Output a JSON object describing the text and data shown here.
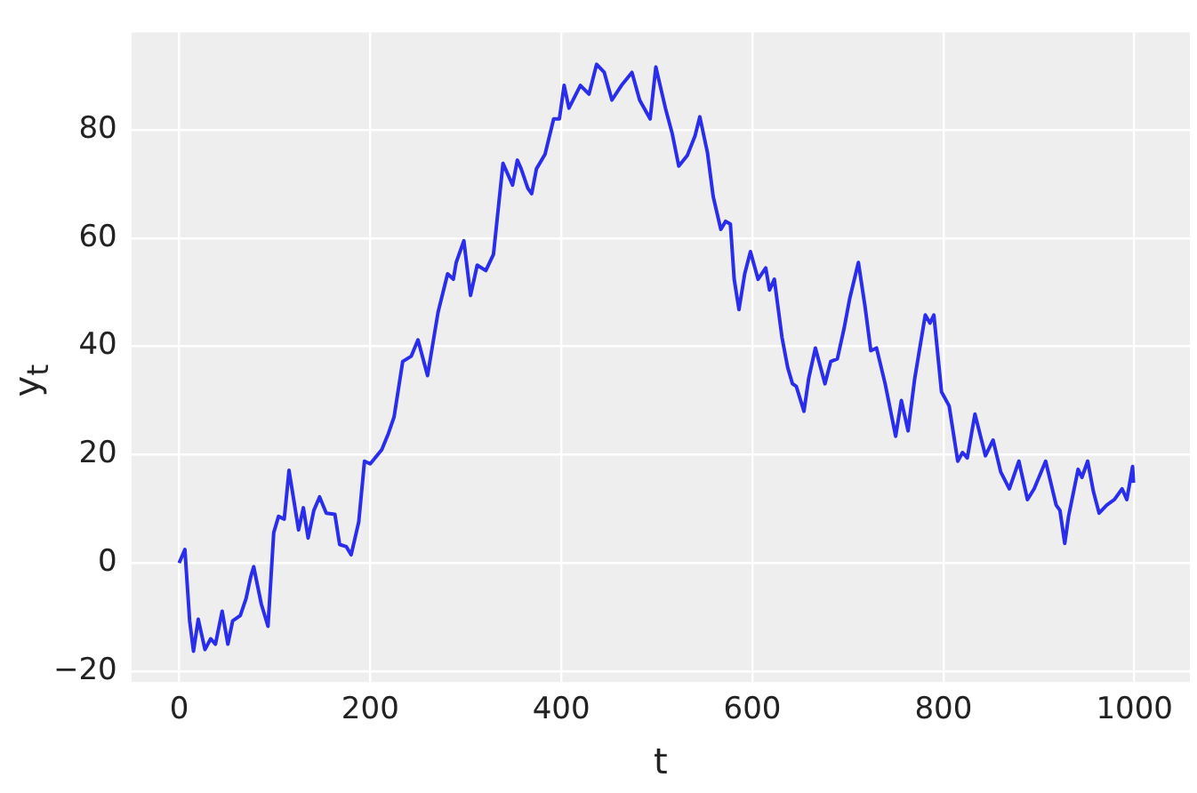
{
  "chart_data": {
    "type": "line",
    "xlabel": "t",
    "ylabel": "y$_{t}$",
    "xlim": [
      -50,
      1058
    ],
    "ylim": [
      -22,
      98
    ],
    "xticks": [
      0,
      200,
      400,
      600,
      800,
      1000
    ],
    "yticks": [
      {
        "value": -20,
        "label": "−20"
      },
      0,
      20,
      40,
      60,
      80
    ],
    "grid": true,
    "legend": false,
    "marker": "none",
    "line_style": "solid",
    "series": [
      {
        "color": "#2a2eec",
        "x": [
          0,
          6,
          11,
          15,
          20,
          27,
          33,
          38,
          45,
          51,
          56,
          64,
          70,
          75,
          78,
          86,
          93,
          99,
          104,
          110,
          115,
          125,
          130,
          135,
          141,
          147,
          154,
          163,
          168,
          175,
          180,
          188,
          194,
          200,
          212,
          219,
          225,
          234,
          243,
          250,
          260,
          271,
          281,
          287,
          290,
          298,
          305,
          312,
          321,
          329,
          339,
          349,
          354,
          358,
          365,
          369,
          374,
          383,
          392,
          398,
          403,
          408,
          420,
          429,
          437,
          445,
          453,
          463,
          474,
          482,
          493,
          499,
          509,
          516,
          523,
          532,
          540,
          545,
          553,
          559,
          567,
          572,
          577,
          581,
          586,
          592,
          598,
          606,
          614,
          618,
          623,
          631,
          637,
          642,
          646,
          654,
          659,
          666,
          676,
          682,
          689,
          696,
          702,
          711,
          718,
          724,
          730,
          739,
          750,
          756,
          763,
          770,
          781,
          786,
          790,
          798,
          806,
          815,
          820,
          825,
          833,
          844,
          852,
          860,
          869,
          879,
          888,
          895,
          907,
          918,
          922,
          927,
          931,
          941,
          945,
          951,
          957,
          963,
          971,
          979,
          987,
          992,
          998,
          999
        ],
        "values": [
          0,
          2.5,
          -10.7,
          -16.3,
          -10.4,
          -16,
          -14,
          -15,
          -8.9,
          -15,
          -10.7,
          -9.7,
          -6.6,
          -2.5,
          -0.7,
          -7.6,
          -11.7,
          5.6,
          8.6,
          8.1,
          17.1,
          6.1,
          10.2,
          4.6,
          9.7,
          12.2,
          9.2,
          9,
          3.4,
          3,
          1.5,
          7.6,
          18.8,
          18.3,
          20.9,
          23.9,
          27,
          37.2,
          38.2,
          41.2,
          34.6,
          46.3,
          53.4,
          52.4,
          55.5,
          59.5,
          49.4,
          55,
          54,
          57,
          73.8,
          69.8,
          74.4,
          72.8,
          69.2,
          68.2,
          72.8,
          75.5,
          82,
          82,
          88.2,
          84,
          88.2,
          86.6,
          92.1,
          90.6,
          85.5,
          88.2,
          90.6,
          85.5,
          82,
          91.6,
          84,
          79.4,
          73.3,
          75.3,
          78.9,
          82.4,
          75.8,
          67.7,
          61.6,
          63.1,
          62.6,
          52.4,
          46.8,
          53.4,
          57.5,
          52.4,
          54.5,
          50.4,
          52.4,
          41.7,
          36.1,
          33.1,
          32.6,
          28,
          34.1,
          39.7,
          33.1,
          37.2,
          37.7,
          43.3,
          48.9,
          55.5,
          47.3,
          39.2,
          39.7,
          33.1,
          23.4,
          30,
          24.4,
          34.1,
          45.8,
          44.3,
          45.8,
          31.6,
          29,
          18.8,
          20.4,
          19.4,
          27.5,
          19.8,
          22.7,
          16.8,
          13.7,
          18.8,
          11.7,
          13.7,
          18.8,
          10.7,
          9.7,
          3.6,
          8.6,
          17.3,
          15.8,
          18.8,
          13.2,
          9.2,
          10.7,
          11.7,
          13.7,
          11.7,
          17.8,
          14.8
        ]
      }
    ]
  }
}
